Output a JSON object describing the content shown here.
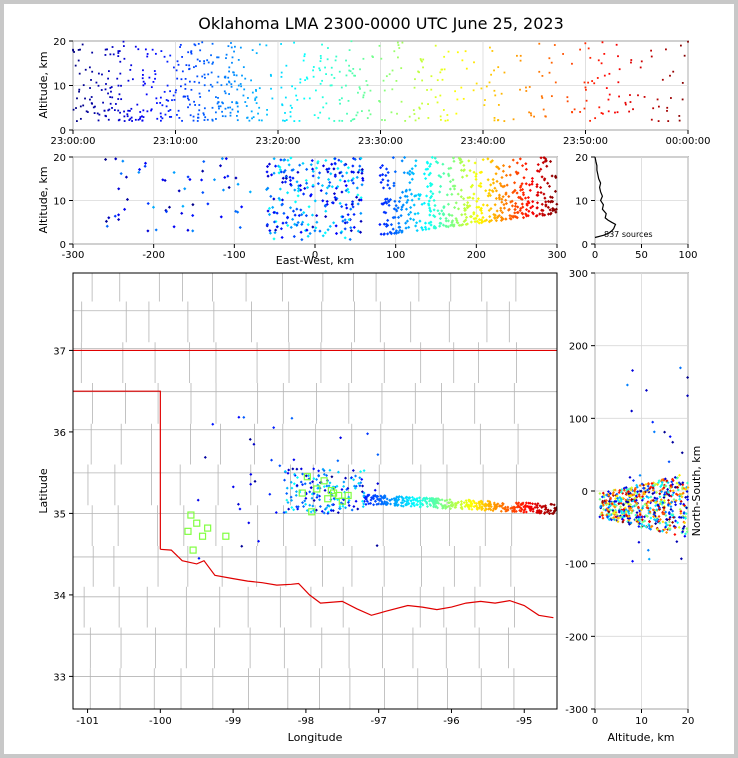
{
  "title": "Oklahoma LMA 2300-0000 UTC June 25, 2023",
  "colors": {
    "border": "#c8c8c8",
    "state_line": "#e00000",
    "county": "#b4b4b4",
    "grid": "#d8d8d8",
    "ltg": "#80ff40"
  },
  "chart_data": [
    {
      "id": "time-height",
      "type": "scatter",
      "ylabel": "Altitude, km",
      "xticks": [
        "23:00:00",
        "23:10:00",
        "23:20:00",
        "23:30:00",
        "23:40:00",
        "23:50:00",
        "00:00:00"
      ],
      "xlim_minutes": [
        0,
        60
      ],
      "yticks": [
        0,
        10,
        20
      ],
      "ylim": [
        0,
        20
      ],
      "color_encoding": "time (blue to red)",
      "clusters": [
        {
          "t": [
            0,
            5
          ],
          "alt": [
            2,
            20
          ],
          "n": 90
        },
        {
          "t": [
            5,
            14
          ],
          "alt": [
            2,
            20
          ],
          "n": 170
        },
        {
          "t": [
            14,
            16
          ],
          "alt": [
            3,
            20
          ],
          "n": 55
        },
        {
          "t": [
            16,
            28
          ],
          "alt": [
            2,
            20
          ],
          "n": 140
        },
        {
          "t": [
            28,
            37
          ],
          "alt": [
            2,
            20
          ],
          "n": 80
        },
        {
          "t": [
            37,
            46
          ],
          "alt": [
            2,
            20
          ],
          "n": 50
        },
        {
          "t": [
            46,
            53
          ],
          "alt": [
            2,
            20
          ],
          "n": 45
        },
        {
          "t": [
            53,
            60
          ],
          "alt": [
            2,
            20
          ],
          "n": 40
        }
      ]
    },
    {
      "id": "east-west",
      "type": "scatter",
      "xlabel": "East-West, km",
      "ylabel": "Altitude, km",
      "xticks": [
        -300,
        -200,
        -100,
        0,
        100,
        200,
        300
      ],
      "xlim": [
        -300,
        300
      ],
      "yticks": [
        0,
        10,
        20
      ],
      "ylim": [
        0,
        20
      ]
    },
    {
      "id": "altitude-histogram",
      "type": "line",
      "xticks": [
        0,
        50,
        100
      ],
      "xlim": [
        0,
        100
      ],
      "yticks": [
        0,
        10,
        20
      ],
      "ylim": [
        0,
        20
      ],
      "annotation": "837 sources",
      "profile": [
        {
          "alt": 1.5,
          "count": 0
        },
        {
          "alt": 2.0,
          "count": 9
        },
        {
          "alt": 2.5,
          "count": 15
        },
        {
          "alt": 3.0,
          "count": 18
        },
        {
          "alt": 3.5,
          "count": 20
        },
        {
          "alt": 4.0,
          "count": 21
        },
        {
          "alt": 4.5,
          "count": 22
        },
        {
          "alt": 5.0,
          "count": 18
        },
        {
          "alt": 5.5,
          "count": 14
        },
        {
          "alt": 6.0,
          "count": 11
        },
        {
          "alt": 7.0,
          "count": 12
        },
        {
          "alt": 8.0,
          "count": 8
        },
        {
          "alt": 9.0,
          "count": 9
        },
        {
          "alt": 10.0,
          "count": 6
        },
        {
          "alt": 11.0,
          "count": 8
        },
        {
          "alt": 12.0,
          "count": 6
        },
        {
          "alt": 13.0,
          "count": 5
        },
        {
          "alt": 14.0,
          "count": 6
        },
        {
          "alt": 15.0,
          "count": 4
        },
        {
          "alt": 16.0,
          "count": 3
        },
        {
          "alt": 17.0,
          "count": 2
        },
        {
          "alt": 18.0,
          "count": 2
        },
        {
          "alt": 19.0,
          "count": 1
        },
        {
          "alt": 20.0,
          "count": 0
        }
      ]
    },
    {
      "id": "plan-view",
      "type": "scatter",
      "xlabel": "Longitude",
      "ylabel": "Latitude",
      "xticks": [
        -101,
        -100,
        -99,
        -98,
        -97,
        -96,
        -95
      ],
      "xlim": [
        -101.2,
        -94.55
      ],
      "yticks": [
        33,
        34,
        35,
        36,
        37
      ],
      "ylim": [
        32.6,
        37.95
      ],
      "state_border": {
        "north_lat": 37.0,
        "panhandle_lat": 36.5,
        "panhandle_west_lon": -101.2,
        "meridian_lon": -100.0,
        "red_river": [
          [
            -100.0,
            34.56
          ],
          [
            -99.85,
            34.55
          ],
          [
            -99.7,
            34.42
          ],
          [
            -99.5,
            34.38
          ],
          [
            -99.4,
            34.42
          ],
          [
            -99.25,
            34.24
          ],
          [
            -99.0,
            34.2
          ],
          [
            -98.8,
            34.17
          ],
          [
            -98.6,
            34.15
          ],
          [
            -98.4,
            34.12
          ],
          [
            -98.2,
            34.13
          ],
          [
            -98.1,
            34.14
          ],
          [
            -97.95,
            34.0
          ],
          [
            -97.8,
            33.9
          ],
          [
            -97.5,
            33.92
          ],
          [
            -97.3,
            33.83
          ],
          [
            -97.1,
            33.75
          ],
          [
            -96.9,
            33.8
          ],
          [
            -96.6,
            33.87
          ],
          [
            -96.4,
            33.85
          ],
          [
            -96.2,
            33.82
          ],
          [
            -96.0,
            33.85
          ],
          [
            -95.8,
            33.9
          ],
          [
            -95.6,
            33.92
          ],
          [
            -95.4,
            33.9
          ],
          [
            -95.2,
            33.93
          ],
          [
            -95.0,
            33.87
          ],
          [
            -94.8,
            33.75
          ],
          [
            -94.6,
            33.72
          ]
        ]
      },
      "lightning_squares": [
        [
          -99.58,
          34.98
        ],
        [
          -99.5,
          34.88
        ],
        [
          -99.42,
          34.72
        ],
        [
          -99.35,
          34.82
        ],
        [
          -99.62,
          34.78
        ],
        [
          -99.55,
          34.55
        ],
        [
          -99.1,
          34.72
        ],
        [
          -98.05,
          35.25
        ],
        [
          -97.98,
          35.45
        ],
        [
          -97.92,
          35.02
        ],
        [
          -97.85,
          35.3
        ],
        [
          -97.7,
          35.18
        ],
        [
          -97.62,
          35.25
        ],
        [
          -97.5,
          35.15
        ],
        [
          -97.42,
          35.22
        ],
        [
          -97.75,
          35.4
        ],
        [
          -97.65,
          35.28
        ],
        [
          -97.55,
          35.22
        ]
      ]
    },
    {
      "id": "north-south",
      "type": "scatter",
      "xlabel": "Altitude, km",
      "ylabel": "North-South, km",
      "xticks": [
        0,
        10,
        20
      ],
      "xlim": [
        0,
        20
      ],
      "yticks": [
        300,
        200,
        100,
        0,
        -100,
        -200,
        -300
      ],
      "ylim": [
        -300,
        300
      ]
    }
  ],
  "labels": {
    "th_ylabel": "Altitude, km",
    "ew_ylabel": "Altitude, km",
    "ew_xlabel": "East-West, km",
    "hist_annot": "837 sources",
    "pv_xlabel": "Longitude",
    "pv_ylabel": "Latitude",
    "ns_xlabel": "Altitude, km",
    "ns_ylabel": "North-South, km"
  }
}
